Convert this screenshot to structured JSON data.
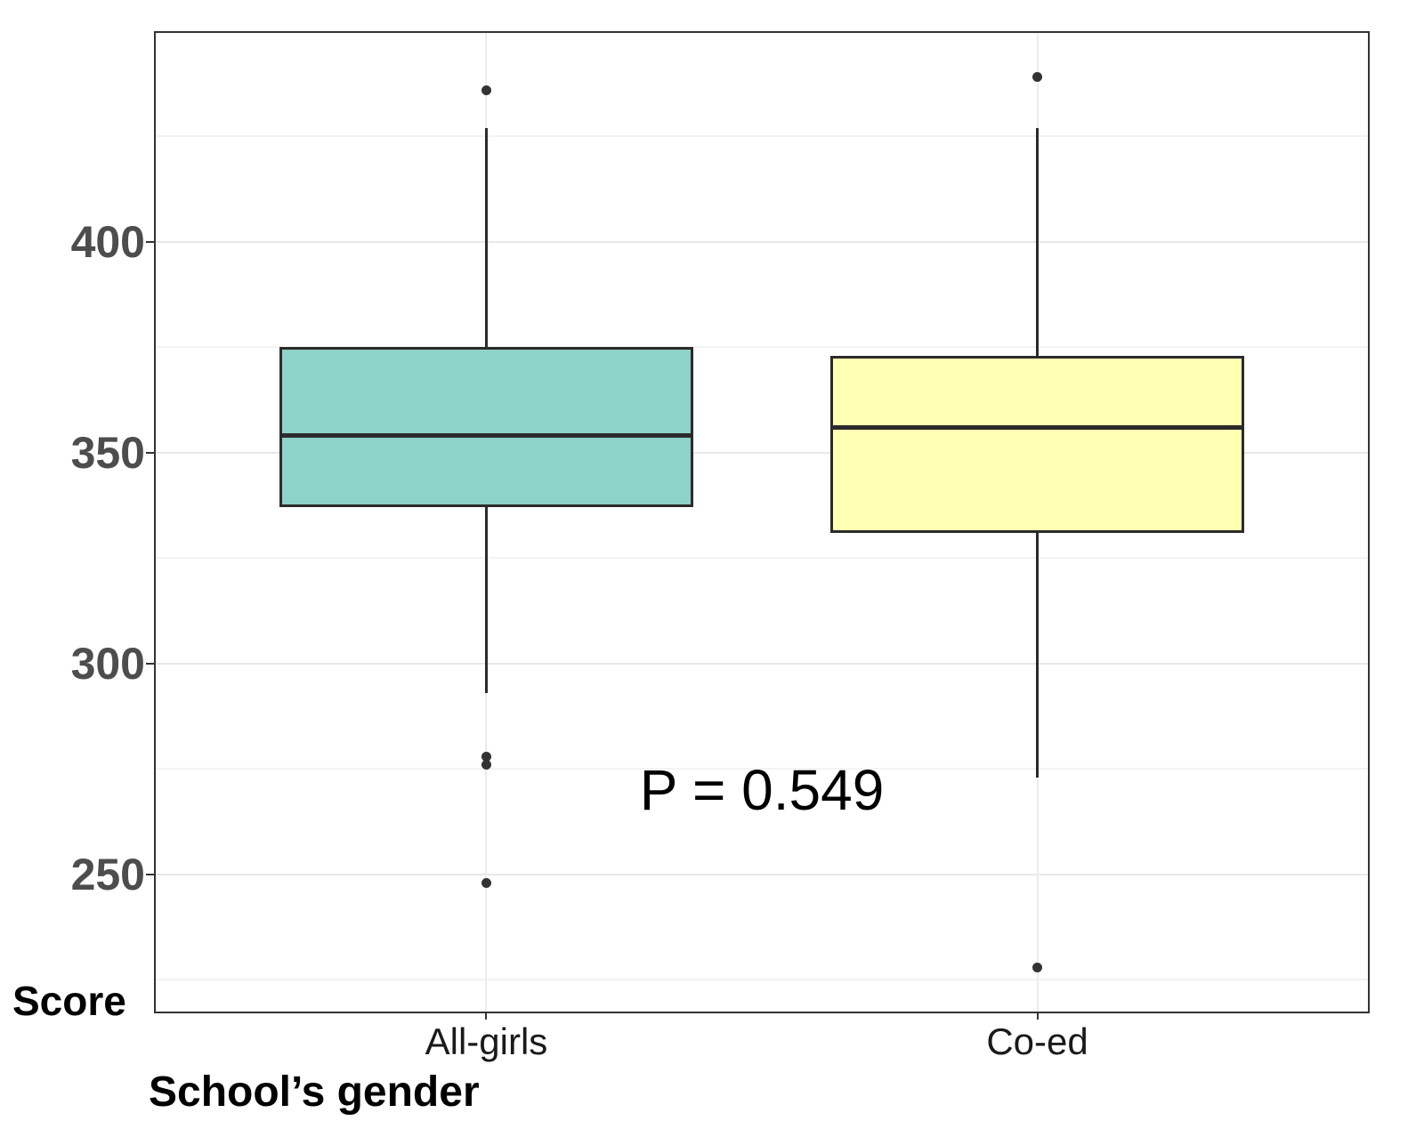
{
  "chart_data": {
    "type": "boxplot",
    "title": "",
    "xlabel": "School’s gender",
    "ylabel": "Score",
    "annotation": {
      "text": "P = 0.549",
      "x_frac": 0.5,
      "y_value": 270
    },
    "y_axis": {
      "min": 217.5,
      "max": 449.5,
      "major_ticks": [
        {
          "value": 400,
          "label": "400"
        },
        {
          "value": 350,
          "label": "350"
        },
        {
          "value": 300,
          "label": "300"
        },
        {
          "value": 250,
          "label": "250"
        }
      ],
      "minor_gridlines": [
        425,
        375,
        325,
        275,
        225
      ]
    },
    "categories": [
      "All-girls",
      "Co-ed"
    ],
    "groups": [
      {
        "label": "All-girls",
        "fill": "#8dd3c7",
        "q1": 337,
        "median": 354,
        "q3": 375,
        "whisker_low": 293,
        "whisker_high": 427,
        "outliers": [
          436,
          278,
          276,
          248
        ]
      },
      {
        "label": "Co-ed",
        "fill": "#ffffb3",
        "q1": 331,
        "median": 356,
        "q3": 373,
        "whisker_low": 273,
        "whisker_high": 427,
        "outliers": [
          439,
          228
        ]
      }
    ],
    "box_width_units": 0.75,
    "legend": "none",
    "grid": "on",
    "colors": {
      "stroke": "#2b2b2b",
      "panel_border": "#333333",
      "grid_major": "#e8e8e8",
      "grid_minor": "#f3f3f3",
      "outlier_dot": "#333333",
      "y_tick_text": "#4d4d4d",
      "x_tick_text": "#1a1a1a"
    }
  }
}
